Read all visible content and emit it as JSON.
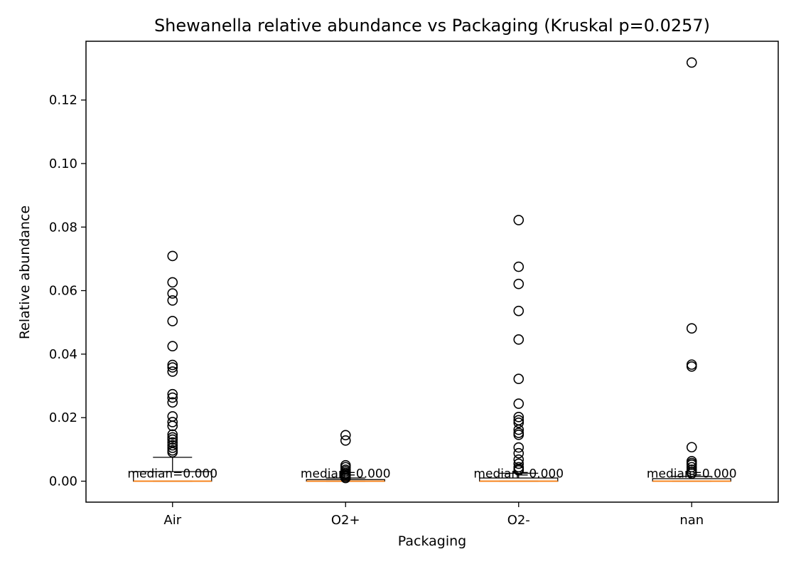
{
  "chart_data": {
    "type": "box",
    "title": "Shewanella relative abundance vs Packaging  (Kruskal p=0.0257)",
    "xlabel": "Packaging",
    "ylabel": "Relative abundance",
    "ylim": [
      -0.0066,
      0.1385
    ],
    "yticks": [
      "0.00",
      "0.02",
      "0.04",
      "0.06",
      "0.08",
      "0.10",
      "0.12"
    ],
    "grid": false,
    "colors": {
      "box": "#000000",
      "median": "#ff7f0e",
      "flier": "#000000"
    },
    "categories": [
      "Air",
      "O2+",
      "O2-",
      "nan"
    ],
    "boxes": [
      {
        "label": "Air",
        "whisker_low": 0.0,
        "q1": 0.0,
        "median": 0.0,
        "q3": 0.003,
        "whisker_high": 0.0075,
        "median_label": "median=0.000",
        "outliers": [
          0.0709,
          0.0626,
          0.0591,
          0.0569,
          0.0504,
          0.0425,
          0.0366,
          0.0358,
          0.0345,
          0.0274,
          0.0263,
          0.0248,
          0.0204,
          0.0186,
          0.0174,
          0.0147,
          0.0138,
          0.0131,
          0.0122,
          0.0113,
          0.0105,
          0.0097,
          0.0091
        ]
      },
      {
        "label": "O2+",
        "whisker_low": 0.0,
        "q1": 0.0,
        "median": 0.0,
        "q3": 0.0005,
        "whisker_high": 0.001,
        "median_label": "median=0.000",
        "outliers": [
          0.0145,
          0.0128,
          0.005,
          0.0044,
          0.0036,
          0.0031,
          0.0026,
          0.0022,
          0.0018,
          0.0014,
          0.001
        ]
      },
      {
        "label": "O2-",
        "whisker_low": 0.0,
        "q1": 0.0,
        "median": 0.0,
        "q3": 0.001,
        "whisker_high": 0.0025,
        "median_label": "median=0.000",
        "outliers": [
          0.0822,
          0.0675,
          0.0621,
          0.0536,
          0.0446,
          0.0322,
          0.0244,
          0.0202,
          0.0192,
          0.0184,
          0.0162,
          0.0152,
          0.0146,
          0.0106,
          0.0088,
          0.0068,
          0.0055,
          0.0044,
          0.0038,
          0.0034
        ]
      },
      {
        "label": "nan",
        "whisker_low": 0.0,
        "q1": 0.0,
        "median": 0.0,
        "q3": 0.0008,
        "whisker_high": 0.0015,
        "median_label": "median=0.000",
        "outliers": [
          0.1318,
          0.0481,
          0.0367,
          0.0361,
          0.0107,
          0.0063,
          0.0057,
          0.0052,
          0.0044,
          0.0036,
          0.0029,
          0.0024
        ]
      }
    ]
  }
}
